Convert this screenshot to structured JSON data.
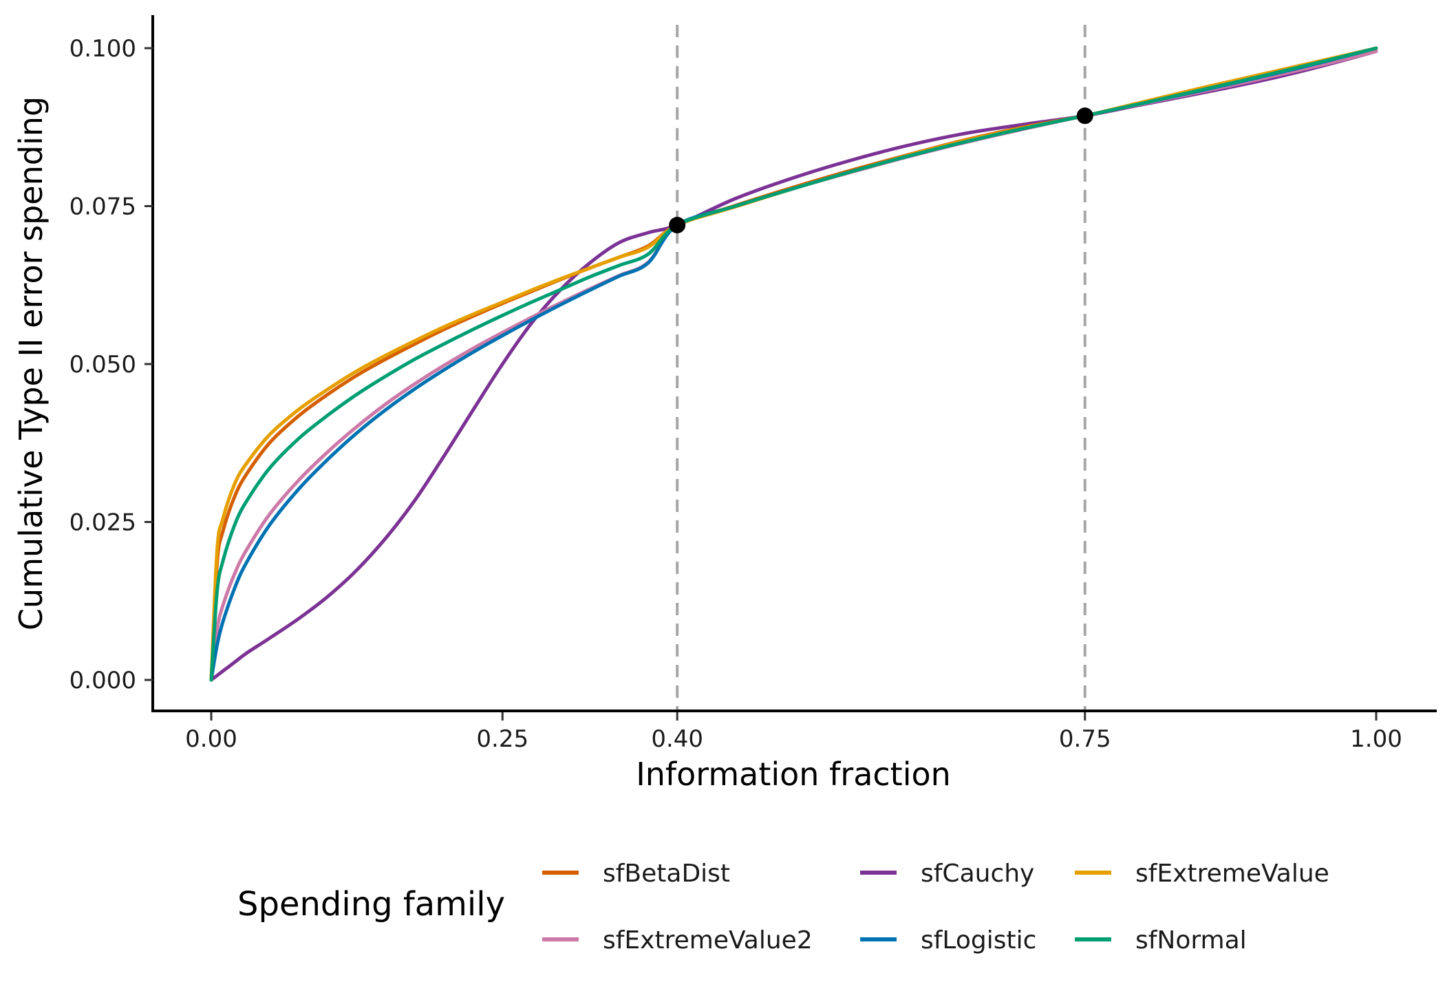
{
  "chart_data": {
    "type": "line",
    "xlabel": "Information fraction",
    "ylabel": "Cumulative Type II error spending",
    "xlim": [
      0,
      1
    ],
    "ylim": [
      0,
      0.1
    ],
    "x_ticks": [
      0,
      0.25,
      0.4,
      0.75,
      1
    ],
    "x_tick_labels": [
      "0.00",
      "0.25",
      "0.40",
      "0.75",
      "1.00"
    ],
    "y_ticks": [
      0,
      0.025,
      0.05,
      0.075,
      0.1
    ],
    "y_tick_labels": [
      "0.000",
      "0.025",
      "0.050",
      "0.075",
      "0.100"
    ],
    "vlines": [
      0.4,
      0.75
    ],
    "points": [
      {
        "x": 0.4,
        "y": 0.072
      },
      {
        "x": 0.75,
        "y": 0.0893
      }
    ],
    "grid": false,
    "legend": {
      "title": "Spending family",
      "position": "bottom"
    },
    "x": [
      0,
      0.005,
      0.01,
      0.02,
      0.03,
      0.05,
      0.075,
      0.1,
      0.125,
      0.15,
      0.175,
      0.2,
      0.225,
      0.25,
      0.275,
      0.3,
      0.325,
      0.35,
      0.375,
      0.4,
      0.45,
      0.5,
      0.55,
      0.6,
      0.65,
      0.7,
      0.75,
      0.8,
      0.85,
      0.9,
      0.95,
      1.0
    ],
    "series": [
      {
        "name": "sfBetaDist",
        "color": "#D55E00",
        "values": [
          0,
          0.0185,
          0.0235,
          0.029,
          0.0325,
          0.0375,
          0.0418,
          0.0452,
          0.0482,
          0.0508,
          0.0532,
          0.0555,
          0.0576,
          0.0596,
          0.0615,
          0.0634,
          0.0652,
          0.0669,
          0.0687,
          0.072,
          0.0751,
          0.078,
          0.0807,
          0.0832,
          0.0856,
          0.0876,
          0.0893,
          0.0914,
          0.0935,
          0.0956,
          0.0978,
          0.1
        ]
      },
      {
        "name": "sfCauchy",
        "color": "#7B3294",
        "values": [
          0,
          0.0007,
          0.0014,
          0.0028,
          0.0042,
          0.0066,
          0.0097,
          0.0132,
          0.0174,
          0.0225,
          0.0285,
          0.0355,
          0.0428,
          0.05,
          0.0565,
          0.0618,
          0.066,
          0.0692,
          0.0708,
          0.072,
          0.0762,
          0.0795,
          0.0823,
          0.0847,
          0.0866,
          0.088,
          0.0893,
          0.0911,
          0.0929,
          0.0948,
          0.097,
          0.0995
        ]
      },
      {
        "name": "sfExtremeValue",
        "color": "#E69F00",
        "values": [
          0,
          0.0205,
          0.0255,
          0.031,
          0.0342,
          0.0388,
          0.0428,
          0.046,
          0.0489,
          0.0514,
          0.0537,
          0.0559,
          0.0579,
          0.0598,
          0.0617,
          0.0635,
          0.0652,
          0.0669,
          0.0685,
          0.072,
          0.0749,
          0.0778,
          0.0805,
          0.0831,
          0.0855,
          0.0875,
          0.0893,
          0.0915,
          0.0937,
          0.0958,
          0.0979,
          0.1
        ]
      },
      {
        "name": "sfExtremeValue2",
        "color": "#CC79A7",
        "values": [
          0,
          0.008,
          0.0118,
          0.0168,
          0.0205,
          0.0262,
          0.0316,
          0.0361,
          0.0401,
          0.0437,
          0.0469,
          0.0498,
          0.0525,
          0.055,
          0.0574,
          0.0597,
          0.0619,
          0.064,
          0.0661,
          0.072,
          0.0749,
          0.0778,
          0.0804,
          0.0829,
          0.0852,
          0.0873,
          0.0893,
          0.0912,
          0.0931,
          0.0951,
          0.0972,
          0.0995
        ]
      },
      {
        "name": "sfLogistic",
        "color": "#0072B2",
        "values": [
          0,
          0.0055,
          0.0092,
          0.0145,
          0.0185,
          0.0245,
          0.0302,
          0.0349,
          0.0391,
          0.0428,
          0.0461,
          0.0491,
          0.0519,
          0.0545,
          0.057,
          0.0594,
          0.0617,
          0.0639,
          0.066,
          0.072,
          0.075,
          0.0778,
          0.0805,
          0.083,
          0.0853,
          0.0874,
          0.0893,
          0.0913,
          0.0933,
          0.0954,
          0.0976,
          0.1
        ]
      },
      {
        "name": "sfNormal",
        "color": "#009E73",
        "values": [
          0,
          0.014,
          0.0188,
          0.0245,
          0.0282,
          0.0335,
          0.0382,
          0.0419,
          0.0452,
          0.0481,
          0.0508,
          0.0532,
          0.0555,
          0.0577,
          0.0598,
          0.0618,
          0.0638,
          0.0656,
          0.0674,
          0.072,
          0.075,
          0.0778,
          0.0805,
          0.083,
          0.0853,
          0.0874,
          0.0893,
          0.0913,
          0.0934,
          0.0955,
          0.0977,
          0.1
        ]
      }
    ]
  }
}
